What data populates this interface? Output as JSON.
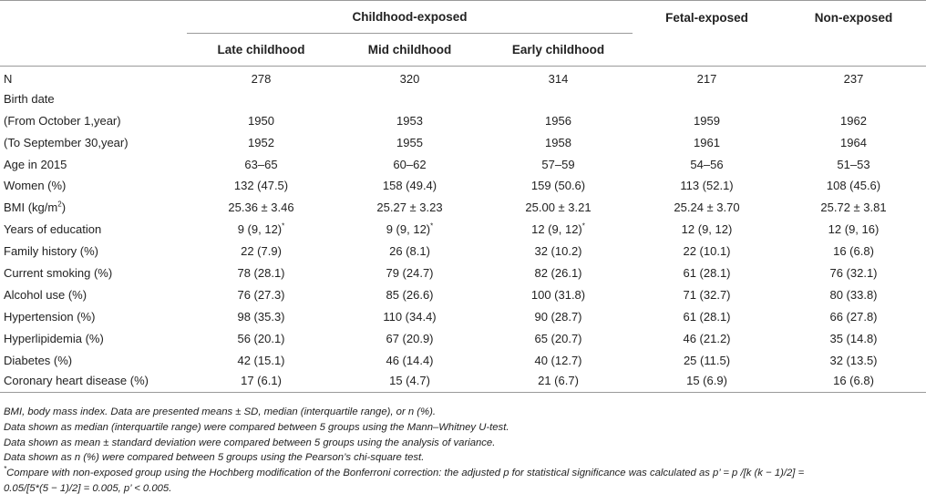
{
  "header": {
    "group_childhood": "Childhood-exposed",
    "group_fetal": "Fetal-exposed",
    "group_non": "Non-exposed",
    "col_late": "Late childhood",
    "col_mid": "Mid childhood",
    "col_early": "Early childhood"
  },
  "rows": [
    {
      "label": "N",
      "values": [
        "278",
        "320",
        "314",
        "217",
        "237"
      ]
    },
    {
      "label": "Birth date",
      "values": [
        "",
        "",
        "",
        "",
        ""
      ]
    },
    {
      "label": "(From October 1,year)",
      "values": [
        "1950",
        "1953",
        "1956",
        "1959",
        "1962"
      ]
    },
    {
      "label": "(To September 30,year)",
      "values": [
        "1952",
        "1955",
        "1958",
        "1961",
        "1964"
      ]
    },
    {
      "label": "Age in 2015",
      "values": [
        "63–65",
        "60–62",
        "57–59",
        "54–56",
        "51–53"
      ]
    },
    {
      "label": "Women (%)",
      "values": [
        "132 (47.5)",
        "158 (49.4)",
        "159 (50.6)",
        "113 (52.1)",
        "108 (45.6)"
      ]
    },
    {
      "label": "BMI (kg/m",
      "label_sup": "2",
      "label_end": ")",
      "values": [
        "25.36 ± 3.46",
        "25.27 ± 3.23",
        "25.00 ± 3.21",
        "25.24 ± 3.70",
        "25.72 ± 3.81"
      ]
    },
    {
      "label": "Years of education",
      "values": [
        "9 (9, 12)",
        "9 (9, 12)",
        "12 (9, 12)",
        "12 (9, 12)",
        "12 (9, 16)"
      ],
      "marks": [
        "*",
        "*",
        "*",
        "",
        ""
      ]
    },
    {
      "label": "Family history (%)",
      "values": [
        "22 (7.9)",
        "26 (8.1)",
        "32 (10.2)",
        "22 (10.1)",
        "16 (6.8)"
      ]
    },
    {
      "label": "Current smoking (%)",
      "values": [
        "78 (28.1)",
        "79 (24.7)",
        "82 (26.1)",
        "61 (28.1)",
        "76 (32.1)"
      ]
    },
    {
      "label": "Alcohol use (%)",
      "values": [
        "76 (27.3)",
        "85 (26.6)",
        "100 (31.8)",
        "71 (32.7)",
        "80 (33.8)"
      ]
    },
    {
      "label": "Hypertension (%)",
      "values": [
        "98 (35.3)",
        "110 (34.4)",
        "90 (28.7)",
        "61 (28.1)",
        "66 (27.8)"
      ]
    },
    {
      "label": "Hyperlipidemia (%)",
      "values": [
        "56 (20.1)",
        "67 (20.9)",
        "65 (20.7)",
        "46 (21.2)",
        "35 (14.8)"
      ]
    },
    {
      "label": "Diabetes (%)",
      "values": [
        "42 (15.1)",
        "46 (14.4)",
        "40 (12.7)",
        "25 (11.5)",
        "32 (13.5)"
      ]
    },
    {
      "label": "Coronary heart disease (%)",
      "values": [
        "17 (6.1)",
        "15 (4.7)",
        "21 (6.7)",
        "15 (6.9)",
        "16 (6.8)"
      ]
    }
  ],
  "notes": {
    "n1": "BMI, body mass index. Data are presented means ± SD, median (interquartile range), or n (%).",
    "n2": "Data shown as median (interquartile range) were compared between 5 groups using the Mann–Whitney U-test.",
    "n3": "Data shown as mean ± standard deviation were compared between 5 groups using the analysis of variance.",
    "n4": "Data shown as n (%) were compared between 5 groups using the Pearson’s chi-square test.",
    "n5_mark": "*",
    "n5_a": "Compare with non-exposed group using the Hochberg modification of the Bonferroni correction: the adjusted p for statistical significance was calculated as p’ = p /[k (k − 1)/2] =",
    "n5_b": "0.05/[5*(5 − 1)/2] = 0.005, p’ < 0.005."
  }
}
